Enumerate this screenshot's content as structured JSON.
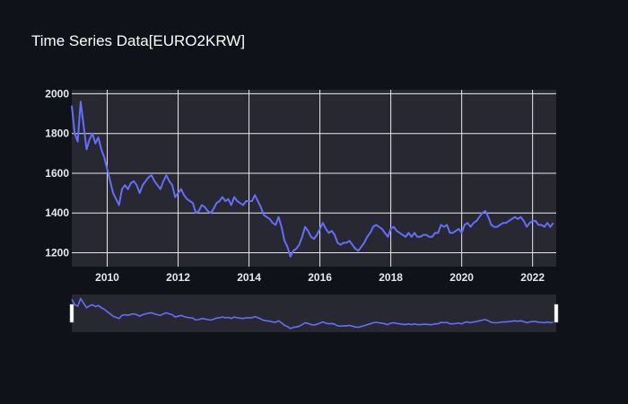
{
  "chart_data": {
    "type": "line",
    "title": "Time Series Data[EURO2KRW]",
    "xlabel": "",
    "ylabel": "",
    "x_ticks": [
      "2010",
      "2012",
      "2014",
      "2016",
      "2018",
      "2020",
      "2022"
    ],
    "y_ticks": [
      "1200",
      "1400",
      "1600",
      "1800",
      "2000"
    ],
    "xlim": [
      "2009-01-01",
      "2022-09-01"
    ],
    "ylim": [
      1130,
      2020
    ],
    "grid": true,
    "range_slider": true,
    "colors": {
      "line": "#636efa",
      "plot_bg": "#272831",
      "page_bg": "#10121a",
      "grid": "#e9e9ee"
    },
    "series": [
      {
        "x": [
          "2009-01",
          "2009-02",
          "2009-03",
          "2009-04",
          "2009-05",
          "2009-06",
          "2009-07",
          "2009-08",
          "2009-09",
          "2009-10",
          "2009-11",
          "2009-12",
          "2010-01",
          "2010-02",
          "2010-03",
          "2010-04",
          "2010-05",
          "2010-06",
          "2010-07",
          "2010-08",
          "2010-09",
          "2010-10",
          "2010-11",
          "2010-12",
          "2011-01",
          "2011-02",
          "2011-03",
          "2011-04",
          "2011-05",
          "2011-06",
          "2011-07",
          "2011-08",
          "2011-09",
          "2011-10",
          "2011-11",
          "2011-12",
          "2012-01",
          "2012-02",
          "2012-03",
          "2012-04",
          "2012-05",
          "2012-06",
          "2012-07",
          "2012-08",
          "2012-09",
          "2012-10",
          "2012-11",
          "2012-12",
          "2013-01",
          "2013-02",
          "2013-03",
          "2013-04",
          "2013-05",
          "2013-06",
          "2013-07",
          "2013-08",
          "2013-09",
          "2013-10",
          "2013-11",
          "2013-12",
          "2014-01",
          "2014-02",
          "2014-03",
          "2014-04",
          "2014-05",
          "2014-06",
          "2014-07",
          "2014-08",
          "2014-09",
          "2014-10",
          "2014-11",
          "2014-12",
          "2015-01",
          "2015-02",
          "2015-03",
          "2015-04",
          "2015-05",
          "2015-06",
          "2015-07",
          "2015-08",
          "2015-09",
          "2015-10",
          "2015-11",
          "2015-12",
          "2016-01",
          "2016-02",
          "2016-03",
          "2016-04",
          "2016-05",
          "2016-06",
          "2016-07",
          "2016-08",
          "2016-09",
          "2016-10",
          "2016-11",
          "2016-12",
          "2017-01",
          "2017-02",
          "2017-03",
          "2017-04",
          "2017-05",
          "2017-06",
          "2017-07",
          "2017-08",
          "2017-09",
          "2017-10",
          "2017-11",
          "2017-12",
          "2018-01",
          "2018-02",
          "2018-03",
          "2018-04",
          "2018-05",
          "2018-06",
          "2018-07",
          "2018-08",
          "2018-09",
          "2018-10",
          "2018-11",
          "2018-12",
          "2019-01",
          "2019-02",
          "2019-03",
          "2019-04",
          "2019-05",
          "2019-06",
          "2019-07",
          "2019-08",
          "2019-09",
          "2019-10",
          "2019-11",
          "2019-12",
          "2020-01",
          "2020-02",
          "2020-03",
          "2020-04",
          "2020-05",
          "2020-06",
          "2020-07",
          "2020-08",
          "2020-09",
          "2020-10",
          "2020-11",
          "2020-12",
          "2021-01",
          "2021-02",
          "2021-03",
          "2021-04",
          "2021-05",
          "2021-06",
          "2021-07",
          "2021-08",
          "2021-09",
          "2021-10",
          "2021-11",
          "2021-12",
          "2022-01",
          "2022-02",
          "2022-03",
          "2022-04",
          "2022-05",
          "2022-06",
          "2022-07",
          "2022-08"
        ],
        "y": [
          1940,
          1800,
          1760,
          1960,
          1840,
          1720,
          1770,
          1800,
          1750,
          1780,
          1720,
          1680,
          1620,
          1560,
          1500,
          1470,
          1440,
          1520,
          1540,
          1520,
          1550,
          1560,
          1540,
          1500,
          1540,
          1560,
          1580,
          1590,
          1560,
          1540,
          1520,
          1560,
          1590,
          1560,
          1540,
          1480,
          1500,
          1520,
          1490,
          1470,
          1460,
          1450,
          1400,
          1410,
          1440,
          1430,
          1410,
          1400,
          1420,
          1450,
          1460,
          1480,
          1460,
          1470,
          1440,
          1480,
          1460,
          1450,
          1440,
          1460,
          1460,
          1460,
          1490,
          1460,
          1430,
          1390,
          1380,
          1370,
          1350,
          1340,
          1380,
          1330,
          1260,
          1230,
          1180,
          1210,
          1220,
          1240,
          1280,
          1330,
          1310,
          1280,
          1270,
          1290,
          1320,
          1350,
          1320,
          1300,
          1310,
          1290,
          1250,
          1240,
          1250,
          1250,
          1260,
          1240,
          1220,
          1210,
          1230,
          1250,
          1280,
          1300,
          1330,
          1340,
          1330,
          1320,
          1300,
          1280,
          1320,
          1330,
          1310,
          1300,
          1290,
          1280,
          1300,
          1280,
          1300,
          1280,
          1280,
          1290,
          1290,
          1280,
          1280,
          1300,
          1300,
          1340,
          1330,
          1340,
          1300,
          1300,
          1310,
          1320,
          1300,
          1340,
          1350,
          1330,
          1350,
          1360,
          1380,
          1400,
          1410,
          1380,
          1340,
          1330,
          1330,
          1340,
          1350,
          1350,
          1360,
          1370,
          1380,
          1370,
          1380,
          1360,
          1330,
          1350,
          1360,
          1360,
          1340,
          1340,
          1330,
          1350,
          1330,
          1350
        ]
      }
    ]
  }
}
